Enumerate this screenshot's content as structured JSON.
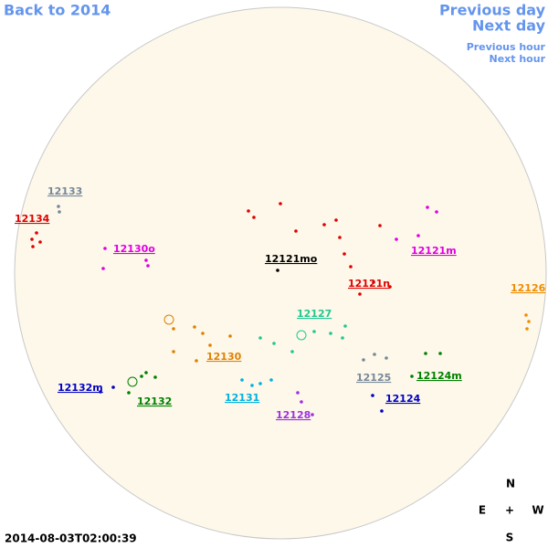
{
  "nav": {
    "back": "Back to 2014",
    "previous_day": "Previous day",
    "next_day": "Next day",
    "previous_hour": "Previous hour",
    "next_hour": "Next hour"
  },
  "regions": [
    {
      "label": "12133",
      "color": "#778899"
    },
    {
      "label": "12134",
      "color": "#e00000"
    },
    {
      "label": "12130o",
      "color": "#e000e0"
    },
    {
      "label": "12121mo",
      "color": "#000000"
    },
    {
      "label": "12121m",
      "color": "#e000e0"
    },
    {
      "label": "12121n",
      "color": "#e00000"
    },
    {
      "label": "12126",
      "color": "#f08c00"
    },
    {
      "label": "12127",
      "color": "#20c890"
    },
    {
      "label": "12130",
      "color": "#e08000"
    },
    {
      "label": "12125",
      "color": "#778899"
    },
    {
      "label": "12124m",
      "color": "#008000"
    },
    {
      "label": "12132m",
      "color": "#0000c0"
    },
    {
      "label": "12132",
      "color": "#008000"
    },
    {
      "label": "12131",
      "color": "#00b0e0"
    },
    {
      "label": "12124",
      "color": "#0000c0"
    },
    {
      "label": "12128",
      "color": "#a030e0"
    }
  ],
  "compass": {
    "north": "N",
    "east": "E",
    "center": "+",
    "west": "W",
    "south": "S"
  },
  "timestamp": "2014-08-03T02:00:39"
}
